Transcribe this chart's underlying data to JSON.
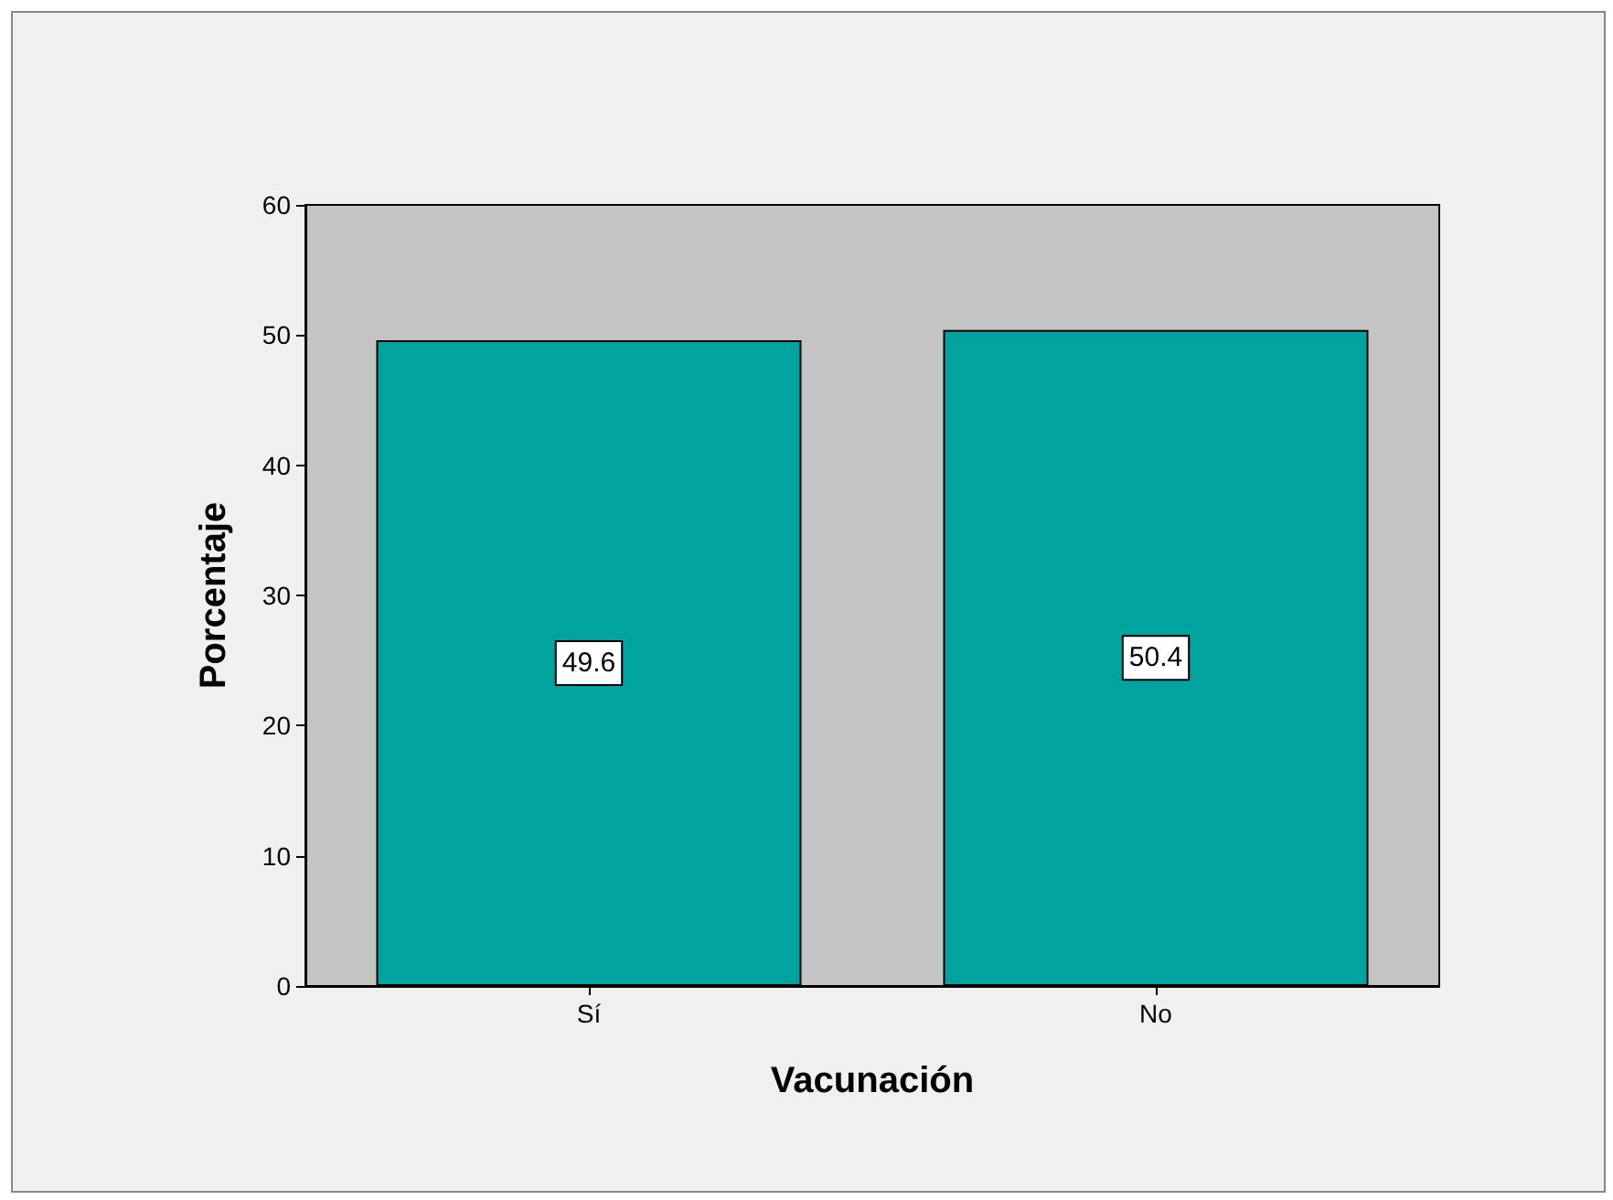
{
  "chart_data": {
    "type": "bar",
    "xlabel": "Vacunación",
    "ylabel": "Porcentaje",
    "categories": [
      "Sí",
      "No"
    ],
    "values": [
      49.6,
      50.4
    ],
    "color": "#00a3a0",
    "ylim": [
      0,
      60
    ],
    "yticks": [
      0,
      10,
      20,
      30,
      40,
      50,
      60
    ],
    "grid": false,
    "data_labels": true
  }
}
